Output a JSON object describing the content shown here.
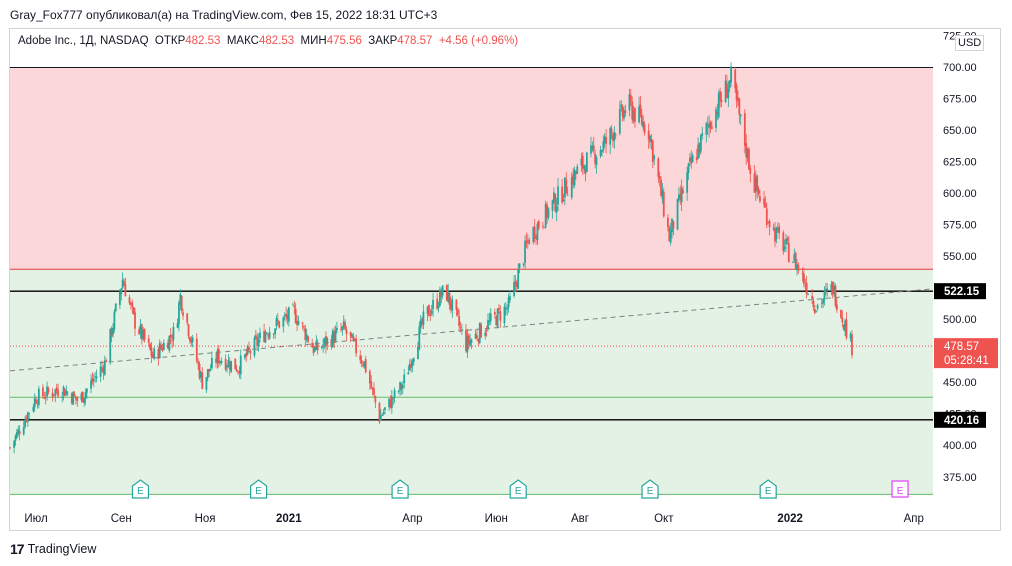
{
  "header": {
    "published_by": "Gray_Fox777 опубликовал(а) на TradingView.com, Фев 15, 2022 18:31 UTC+3"
  },
  "legend": {
    "symbol": "Adobe Inc., 1Д, NASDAQ",
    "open_label": "ОТКР",
    "open_value": "482.53",
    "high_label": "МАКС",
    "high_value": "482.53",
    "low_label": "МИН",
    "low_value": "475.56",
    "close_label": "ЗАКР",
    "close_value": "478.57",
    "change": "+4.56 (+0.96%)"
  },
  "currency": "USD",
  "footer": {
    "brand": "TradingView",
    "logo_text": "17"
  },
  "colors": {
    "up": "#26a69a",
    "down": "#ef5350",
    "resistance_zone": "#fbd7d9",
    "support_zone": "#e3f2e4",
    "price_label": "#ef5350",
    "level_label": "#000000"
  },
  "chart_data": {
    "type": "candlestick",
    "title": "Adobe Inc., 1Д, NASDAQ",
    "ylim": [
      355,
      730
    ],
    "y_ticks": [
      "375.00",
      "400.00",
      "425.00",
      "450.00",
      "475.00",
      "500.00",
      "525.00",
      "550.00",
      "575.00",
      "600.00",
      "625.00",
      "650.00",
      "675.00",
      "700.00",
      "725.00"
    ],
    "x_range": [
      "2020-06-12",
      "2022-04-15"
    ],
    "x_ticks": [
      {
        "label": "Июл",
        "date": "2020-07-01"
      },
      {
        "label": "Сен",
        "date": "2020-09-01"
      },
      {
        "label": "Ноя",
        "date": "2020-11-01"
      },
      {
        "label": "2021",
        "date": "2021-01-01",
        "bold": true
      },
      {
        "label": "Апр",
        "date": "2021-04-01"
      },
      {
        "label": "Июн",
        "date": "2021-06-01"
      },
      {
        "label": "Авг",
        "date": "2021-08-01"
      },
      {
        "label": "Окт",
        "date": "2021-10-01"
      },
      {
        "label": "2022",
        "date": "2022-01-01",
        "bold": true
      },
      {
        "label": "Апр",
        "date": "2022-04-01"
      }
    ],
    "horizontal_levels": [
      {
        "price": 522.15,
        "label": "522.15",
        "color": "#000000"
      },
      {
        "price": 420.16,
        "label": "420.16",
        "color": "#000000"
      },
      {
        "price": 539.5,
        "color": "#e53935"
      },
      {
        "price": 699.5,
        "color": "#131722"
      },
      {
        "price": 438,
        "color": "#66bb6a"
      },
      {
        "price": 361,
        "color": "#66bb6a"
      }
    ],
    "zones": [
      {
        "from": 539.5,
        "to": 699.5,
        "kind": "resistance"
      },
      {
        "from": 361,
        "to": 539.5,
        "kind": "support"
      }
    ],
    "trendline": {
      "from": {
        "date": "2020-06-12",
        "price": 459
      },
      "to": {
        "date": "2022-04-15",
        "price": 524
      },
      "style": "dashed"
    },
    "last_price": {
      "price": 478.57,
      "label": "478.57",
      "countdown": "05:28:41"
    },
    "earnings_markers": [
      {
        "date": "2020-09-15",
        "label": "E"
      },
      {
        "date": "2020-12-10",
        "label": "E"
      },
      {
        "date": "2021-03-23",
        "label": "E"
      },
      {
        "date": "2021-06-17",
        "label": "E"
      },
      {
        "date": "2021-09-21",
        "label": "E"
      },
      {
        "date": "2021-12-16",
        "label": "E"
      },
      {
        "date": "2022-03-22",
        "label": "E",
        "upcoming": true
      }
    ],
    "price_path": [
      {
        "date": "2020-06-12",
        "close": 398
      },
      {
        "date": "2020-07-01",
        "close": 438
      },
      {
        "date": "2020-07-20",
        "close": 445
      },
      {
        "date": "2020-08-01",
        "close": 435
      },
      {
        "date": "2020-08-20",
        "close": 465
      },
      {
        "date": "2020-09-02",
        "close": 532
      },
      {
        "date": "2020-09-10",
        "close": 500
      },
      {
        "date": "2020-09-24",
        "close": 470
      },
      {
        "date": "2020-10-10",
        "close": 490
      },
      {
        "date": "2020-10-14",
        "close": 518
      },
      {
        "date": "2020-10-30",
        "close": 450
      },
      {
        "date": "2020-11-10",
        "close": 470
      },
      {
        "date": "2020-11-25",
        "close": 462
      },
      {
        "date": "2020-12-15",
        "close": 490
      },
      {
        "date": "2021-01-05",
        "close": 505
      },
      {
        "date": "2021-01-20",
        "close": 475
      },
      {
        "date": "2021-02-10",
        "close": 492
      },
      {
        "date": "2021-02-25",
        "close": 465
      },
      {
        "date": "2021-03-08",
        "close": 422
      },
      {
        "date": "2021-03-25",
        "close": 448
      },
      {
        "date": "2021-04-10",
        "close": 502
      },
      {
        "date": "2021-04-25",
        "close": 523
      },
      {
        "date": "2021-05-10",
        "close": 480
      },
      {
        "date": "2021-05-25",
        "close": 495
      },
      {
        "date": "2021-06-10",
        "close": 510
      },
      {
        "date": "2021-06-25",
        "close": 565
      },
      {
        "date": "2021-07-15",
        "close": 595
      },
      {
        "date": "2021-08-01",
        "close": 620
      },
      {
        "date": "2021-08-20",
        "close": 640
      },
      {
        "date": "2021-09-05",
        "close": 670
      },
      {
        "date": "2021-09-20",
        "close": 650
      },
      {
        "date": "2021-10-05",
        "close": 565
      },
      {
        "date": "2021-10-20",
        "close": 620
      },
      {
        "date": "2021-11-05",
        "close": 660
      },
      {
        "date": "2021-11-19",
        "close": 690
      },
      {
        "date": "2021-12-05",
        "close": 610
      },
      {
        "date": "2021-12-20",
        "close": 570
      },
      {
        "date": "2022-01-05",
        "close": 545
      },
      {
        "date": "2022-01-20",
        "close": 510
      },
      {
        "date": "2022-02-01",
        "close": 525
      },
      {
        "date": "2022-02-15",
        "close": 478.57
      }
    ]
  }
}
